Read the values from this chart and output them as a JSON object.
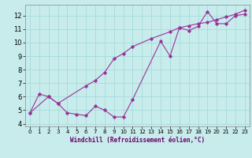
{
  "xlabel": "Windchill (Refroidissement éolien,°C)",
  "bg_color": "#c8ecec",
  "grid_color": "#aadddd",
  "line_color": "#993399",
  "xlim": [
    -0.5,
    23.5
  ],
  "ylim": [
    3.8,
    12.8
  ],
  "yticks": [
    4,
    5,
    6,
    7,
    8,
    9,
    10,
    11,
    12
  ],
  "xticks": [
    0,
    1,
    2,
    3,
    4,
    5,
    6,
    7,
    8,
    9,
    10,
    11,
    12,
    13,
    14,
    15,
    16,
    17,
    18,
    19,
    20,
    21,
    22,
    23
  ],
  "line1_x": [
    0,
    1,
    2,
    3,
    4,
    5,
    6,
    7,
    8,
    9,
    10,
    11,
    14,
    15,
    16,
    17,
    18,
    19,
    20,
    21,
    22,
    23
  ],
  "line1_y": [
    4.8,
    6.2,
    6.0,
    5.5,
    4.8,
    4.7,
    4.6,
    5.3,
    5.0,
    4.5,
    4.5,
    5.8,
    10.1,
    9.0,
    11.1,
    10.9,
    11.2,
    12.3,
    11.4,
    11.4,
    12.0,
    12.1
  ],
  "line2_x": [
    0,
    2,
    3,
    6,
    7,
    8,
    9,
    10,
    11,
    13,
    15,
    16,
    17,
    18,
    19,
    20,
    21,
    22,
    23
  ],
  "line2_y": [
    4.8,
    6.0,
    5.5,
    6.8,
    7.2,
    7.8,
    8.8,
    9.2,
    9.7,
    10.3,
    10.8,
    11.1,
    11.25,
    11.4,
    11.5,
    11.7,
    11.9,
    12.1,
    12.4
  ]
}
